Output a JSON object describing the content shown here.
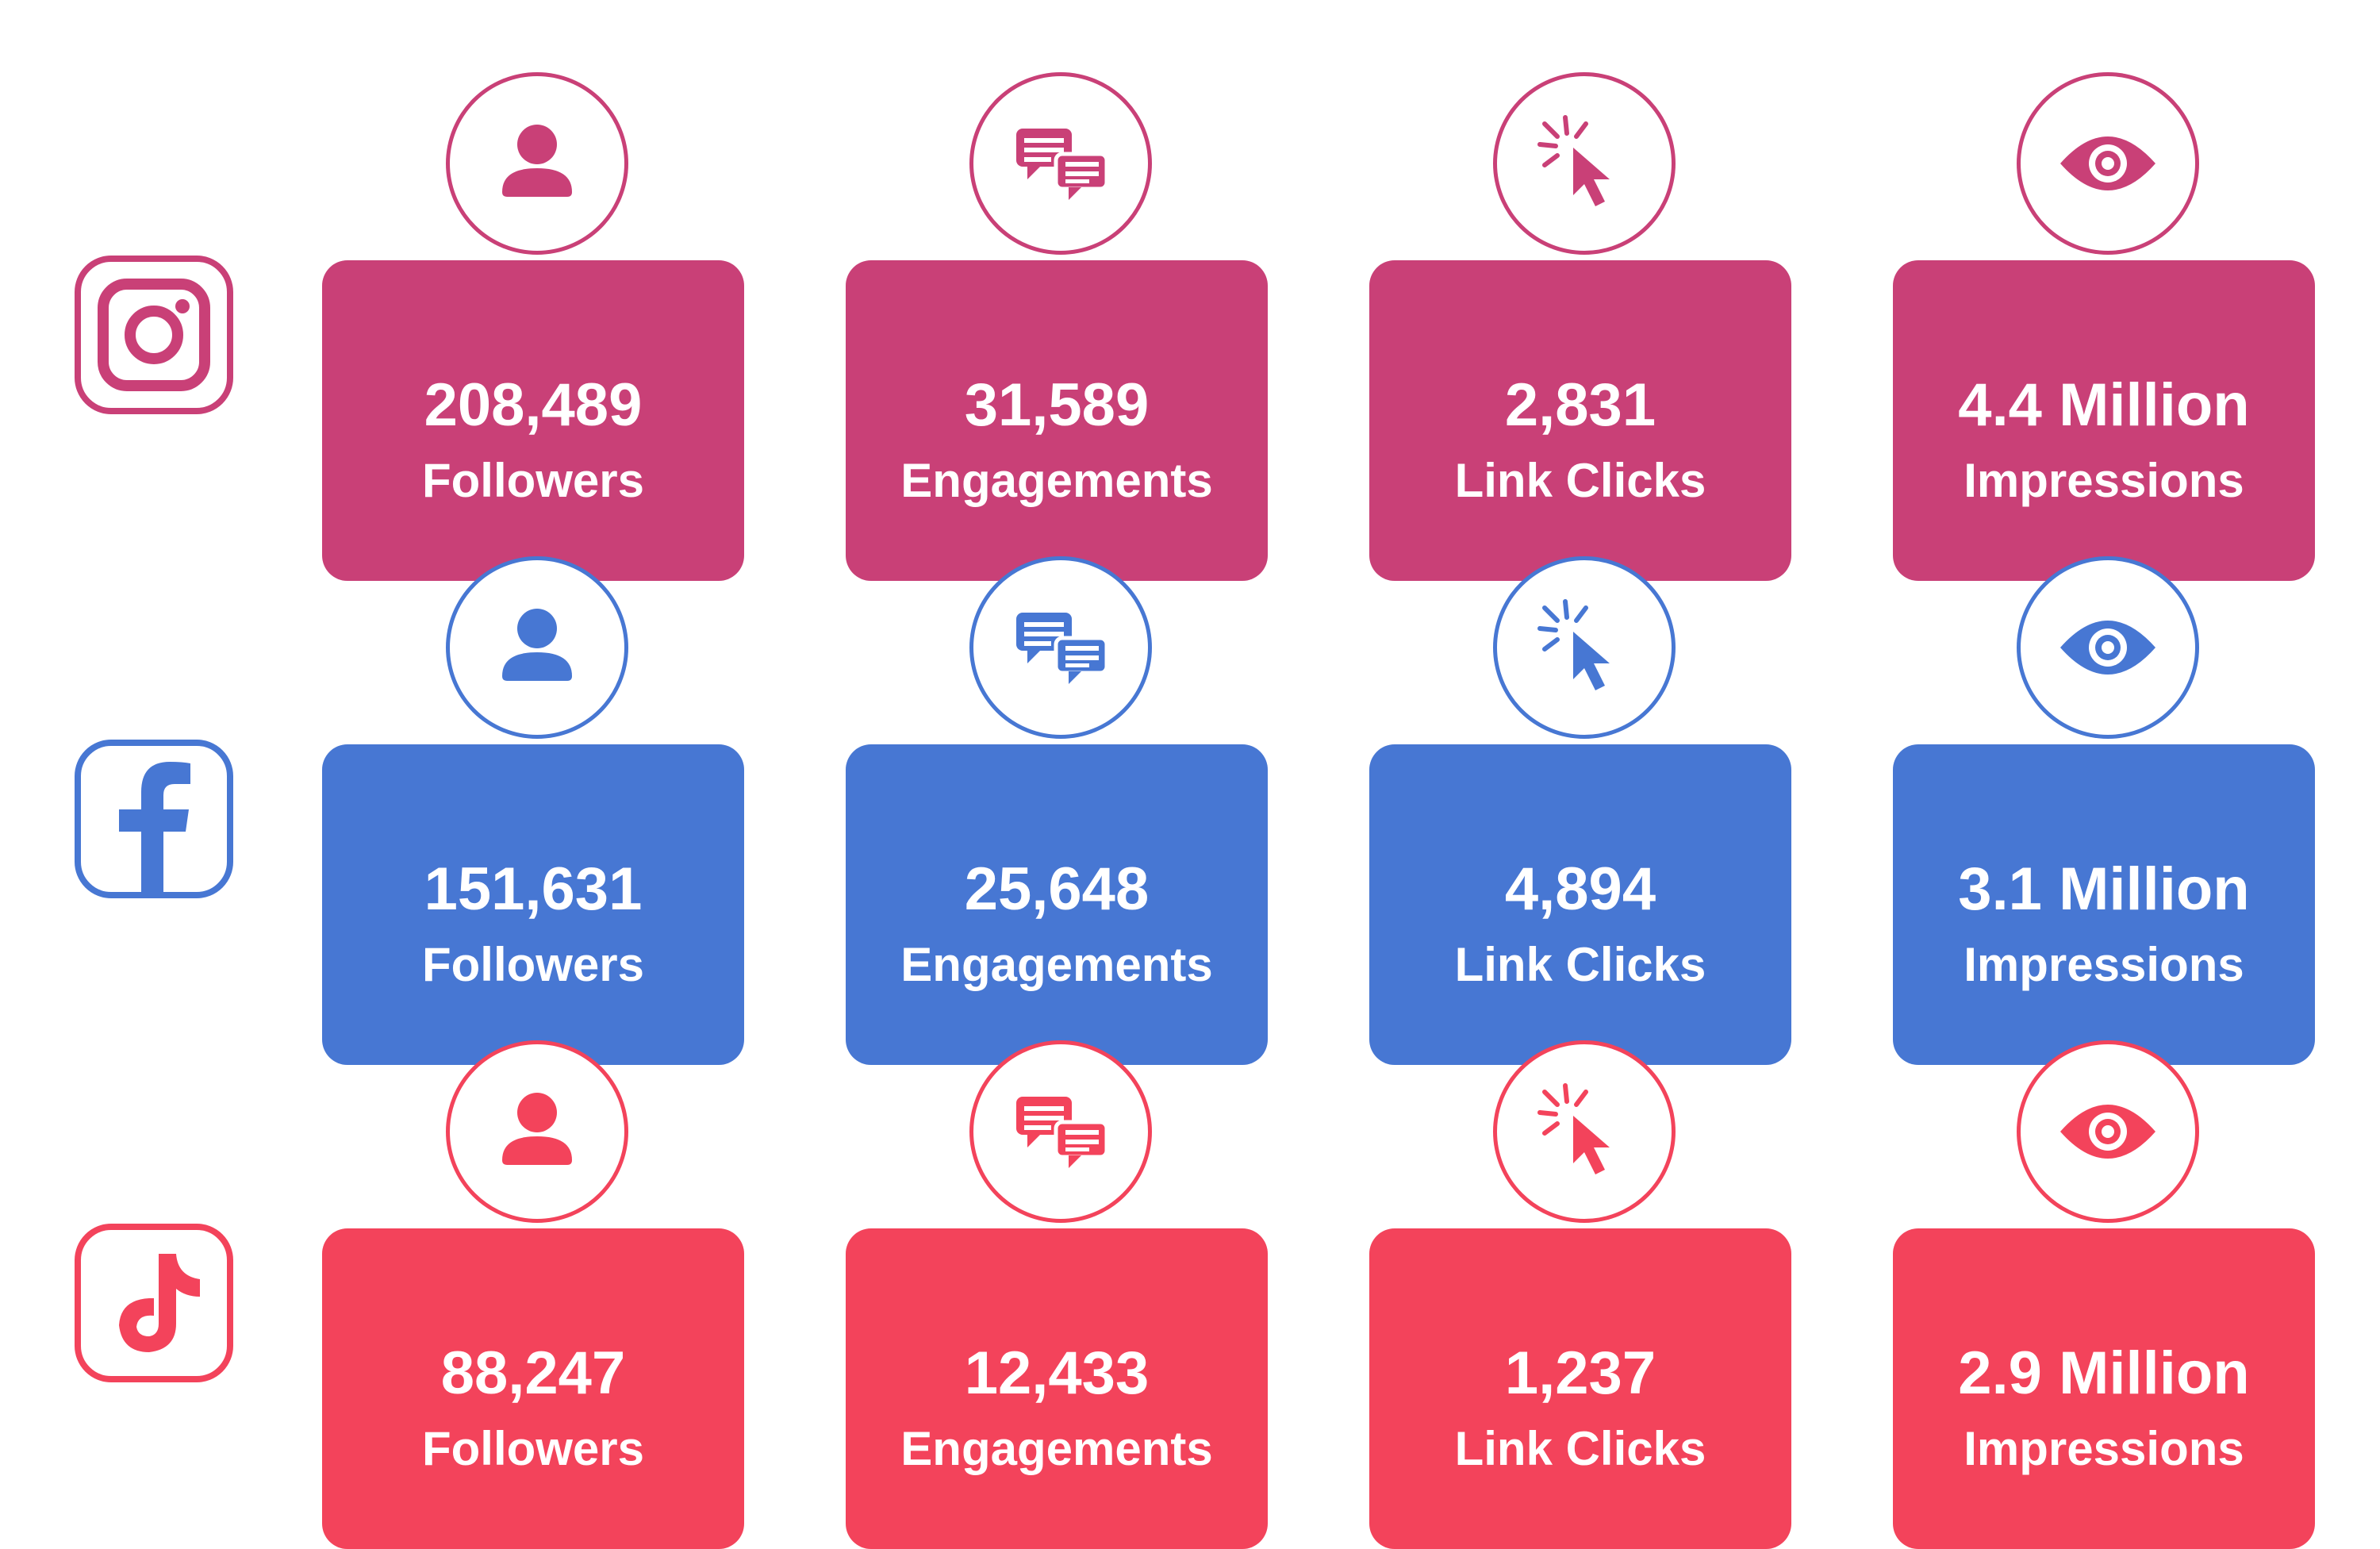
{
  "colors": {
    "instagram": "#c94077",
    "facebook": "#4777d3",
    "tiktok": "#f3435b"
  },
  "metric_icons": [
    "person-icon",
    "chat-bubbles-icon",
    "cursor-click-icon",
    "eye-icon"
  ],
  "platforms": [
    {
      "icon": "instagram-icon",
      "metrics": [
        {
          "value": "208,489",
          "label": "Followers"
        },
        {
          "value": "31,589",
          "label": "Engagements"
        },
        {
          "value": "2,831",
          "label": "Link Clicks"
        },
        {
          "value": "4.4 Million",
          "label": "Impressions"
        }
      ]
    },
    {
      "icon": "facebook-icon",
      "metrics": [
        {
          "value": "151,631",
          "label": "Followers"
        },
        {
          "value": "25,648",
          "label": "Engagements"
        },
        {
          "value": "4,894",
          "label": "Link Clicks"
        },
        {
          "value": "3.1 Million",
          "label": "Impressions"
        }
      ]
    },
    {
      "icon": "tiktok-icon",
      "metrics": [
        {
          "value": "88,247",
          "label": "Followers"
        },
        {
          "value": "12,433",
          "label": "Engagements"
        },
        {
          "value": "1,237",
          "label": "Link Clicks"
        },
        {
          "value": "2.9 Million",
          "label": "Impressions"
        }
      ]
    }
  ]
}
